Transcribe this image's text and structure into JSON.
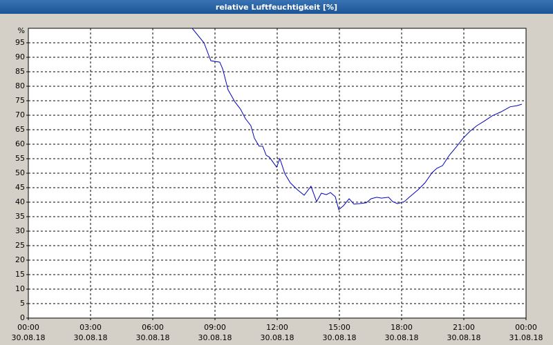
{
  "chart_data": {
    "type": "line",
    "title": "relative Luftfeuchtigkeit [%]",
    "y_unit": "%",
    "x": [
      7.9,
      8.47,
      8.8,
      9.23,
      9.37,
      9.63,
      9.97,
      10.23,
      10.47,
      10.73,
      10.9,
      11.13,
      11.3,
      11.47,
      11.63,
      11.97,
      12.13,
      12.37,
      12.63,
      12.97,
      13.3,
      13.63,
      13.9,
      14.13,
      14.37,
      14.57,
      14.8,
      14.97,
      15.2,
      15.47,
      15.7,
      15.97,
      16.3,
      16.53,
      16.8,
      17.03,
      17.37,
      17.57,
      17.8,
      18.13,
      18.4,
      18.8,
      19.13,
      19.47,
      19.7,
      19.97,
      20.3,
      20.63,
      20.97,
      21.3,
      21.63,
      21.97,
      22.37,
      22.8,
      23.23,
      23.57,
      23.8
    ],
    "series": [
      {
        "name": "relative Luftfeuchtigkeit",
        "color": "#0000c0",
        "values": [
          100,
          95,
          88.8,
          88.3,
          86,
          78.8,
          74.5,
          72.1,
          68.8,
          66.4,
          62.1,
          59.3,
          59.3,
          56.2,
          55.5,
          52.1,
          55,
          49.8,
          46.7,
          44.3,
          42.4,
          45.5,
          40.2,
          43.1,
          42.6,
          43.3,
          41.9,
          37.4,
          38.8,
          41.2,
          39.3,
          39.5,
          39.8,
          41.2,
          41.7,
          41.4,
          41.7,
          40.2,
          39.5,
          40.2,
          41.9,
          44.3,
          46.7,
          50.2,
          51.7,
          52.6,
          56.2,
          59,
          62.1,
          64.5,
          66.4,
          67.9,
          69.8,
          71.2,
          72.9,
          73.3,
          73.8
        ]
      }
    ],
    "xlim": [
      0,
      24
    ],
    "xticks": [
      {
        "value": 0,
        "label": "00:00",
        "date": "30.08.18"
      },
      {
        "value": 3,
        "label": "03:00",
        "date": "30.08.18"
      },
      {
        "value": 6,
        "label": "06:00",
        "date": "30.08.18"
      },
      {
        "value": 9,
        "label": "09:00",
        "date": "30.08.18"
      },
      {
        "value": 12,
        "label": "12:00",
        "date": "30.08.18"
      },
      {
        "value": 15,
        "label": "15:00",
        "date": "30.08.18"
      },
      {
        "value": 18,
        "label": "18:00",
        "date": "30.08.18"
      },
      {
        "value": 21,
        "label": "21:00",
        "date": "30.08.18"
      },
      {
        "value": 24,
        "label": "00:00",
        "date": "31.08.18"
      }
    ],
    "ylim": [
      0,
      100
    ],
    "yticks": [
      0,
      5,
      10,
      15,
      20,
      25,
      30,
      35,
      40,
      45,
      50,
      55,
      60,
      65,
      70,
      75,
      80,
      85,
      90,
      95
    ],
    "grid": true
  }
}
